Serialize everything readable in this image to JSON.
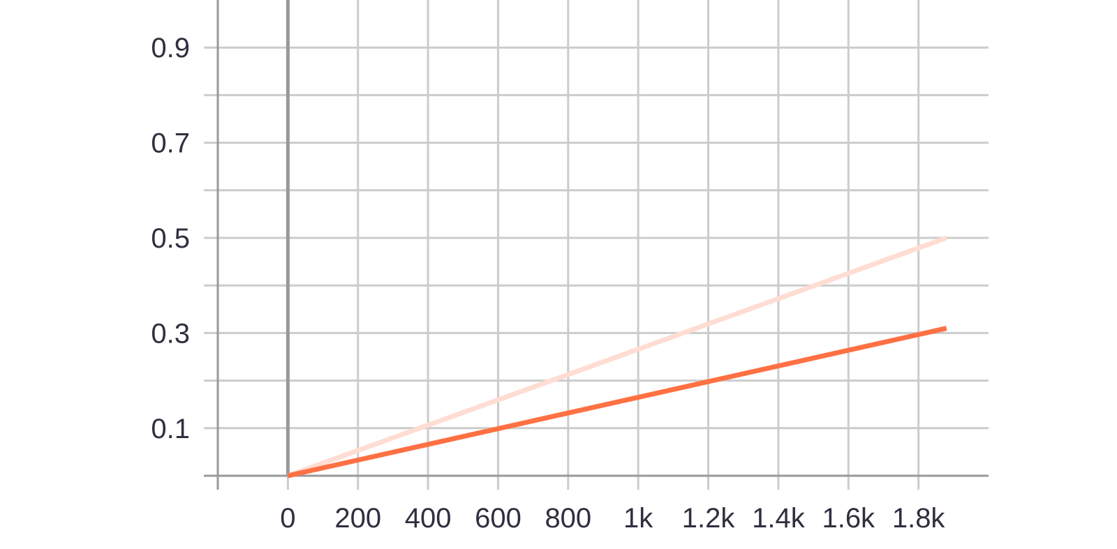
{
  "chart_data": {
    "type": "line",
    "title": "",
    "xlabel": "",
    "ylabel": "",
    "xlim": [
      -200,
      2000
    ],
    "ylim": [
      0,
      1.0
    ],
    "grid": true,
    "legend": "none",
    "x_ticks": [
      {
        "value": 0,
        "label": "0"
      },
      {
        "value": 200,
        "label": "200"
      },
      {
        "value": 400,
        "label": "400"
      },
      {
        "value": 600,
        "label": "600"
      },
      {
        "value": 800,
        "label": "800"
      },
      {
        "value": 1000,
        "label": "1k"
      },
      {
        "value": 1200,
        "label": "1.2k"
      },
      {
        "value": 1400,
        "label": "1.4k"
      },
      {
        "value": 1600,
        "label": "1.6k"
      },
      {
        "value": 1800,
        "label": "1.8k"
      }
    ],
    "y_ticks": [
      {
        "value": 0.1,
        "label": "0.1"
      },
      {
        "value": 0.3,
        "label": "0.3"
      },
      {
        "value": 0.5,
        "label": "0.5"
      },
      {
        "value": 0.7,
        "label": "0.7"
      },
      {
        "value": 0.9,
        "label": "0.9"
      }
    ],
    "y_minor_grid": [
      0.2,
      0.4,
      0.6,
      0.8
    ],
    "series": [
      {
        "x": [
          0,
          1880
        ],
        "values": [
          0,
          0.5
        ],
        "color": "#ffddd2"
      },
      {
        "x": [
          0,
          1880
        ],
        "values": [
          0,
          0.31
        ],
        "color": "#ff7043"
      }
    ],
    "colors": {
      "grid": "#cccccc",
      "axis": "#999999",
      "text": "#2f2f3f"
    }
  }
}
